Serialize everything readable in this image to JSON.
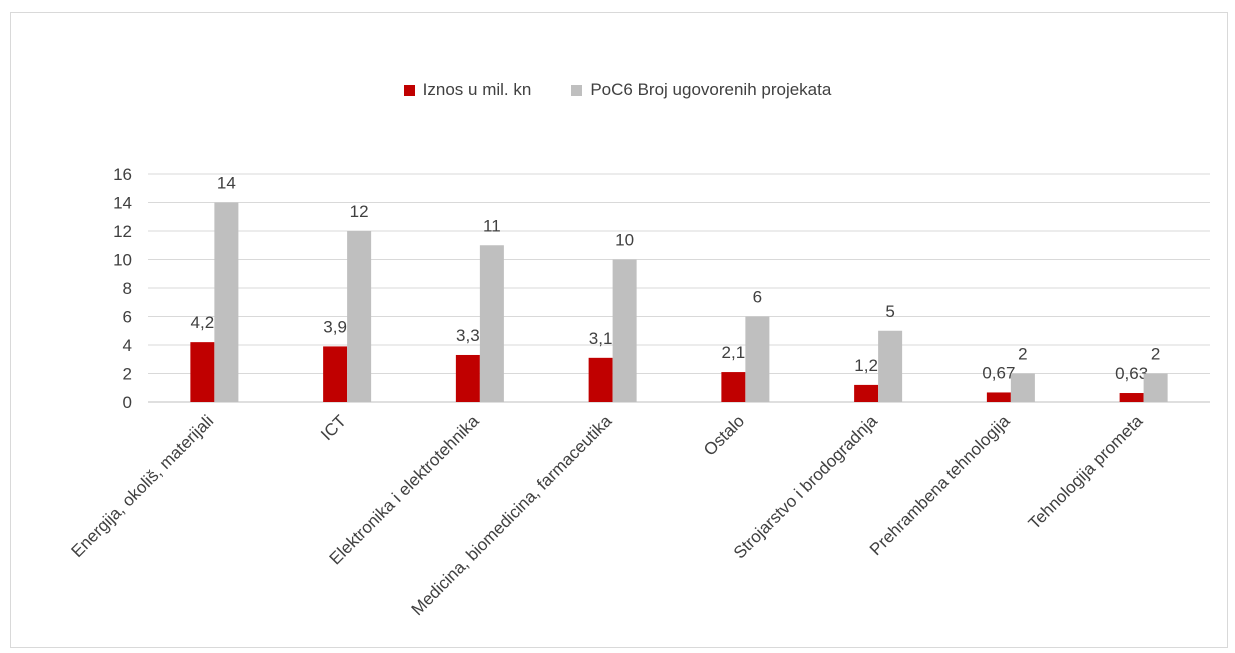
{
  "chart_data": {
    "type": "bar",
    "categories": [
      "Energija, okoliš, materijali",
      "ICT",
      "Elektronika i elektrotehnika",
      "Medicina, biomedicina, farmaceutika",
      "Ostalo",
      "Strojarstvo i brodogradnja",
      "Prehrambena tehnologija",
      "Tehnologija prometa"
    ],
    "series": [
      {
        "name": "Iznos u mil. kn",
        "color": "#c00000",
        "values": [
          4.2,
          3.9,
          3.3,
          3.1,
          2.1,
          1.2,
          0.67,
          0.63
        ],
        "labels": [
          "4,2",
          "3,9",
          "3,3",
          "3,1",
          "2,1",
          "1,2",
          "0,67",
          "0,63"
        ]
      },
      {
        "name": "PoC6 Broj ugovorenih projekata",
        "color": "#bfbfbf",
        "values": [
          14,
          12,
          11,
          10,
          6,
          5,
          2,
          2
        ],
        "labels": [
          "14",
          "12",
          "11",
          "10",
          "6",
          "5",
          "2",
          "2"
        ]
      }
    ],
    "ylim": [
      0,
      16
    ],
    "yticks": [
      0,
      2,
      4,
      6,
      8,
      10,
      12,
      14,
      16
    ],
    "grid": true,
    "legend_position": "top"
  }
}
